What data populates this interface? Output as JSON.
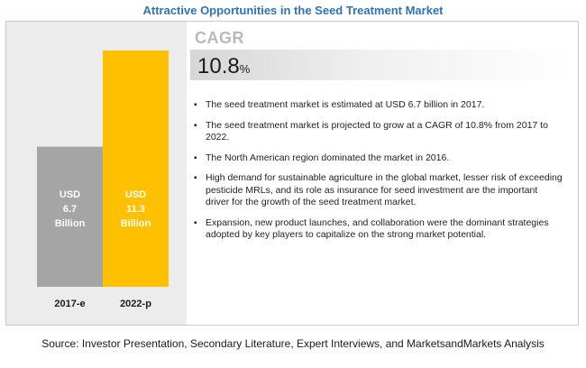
{
  "title": "Attractive Opportunities in the Seed Treatment Market",
  "cagr": {
    "label": "CAGR",
    "value": "10.8",
    "unit": "%"
  },
  "bullets": [
    "The seed treatment market is estimated at USD 6.7 billion in 2017.",
    "The seed treatment market is projected to grow at a CAGR of 10.8% from 2017 to 2022.",
    "The North American region dominated the market in 2016.",
    "High demand for sustainable agriculture in the global market, lesser risk of exceeding pesticide MRLs, and its role as insurance for seed investment are the important driver for the growth of the seed treatment market.",
    "Expansion, new product launches, and collaboration were the dominant strategies adopted by key players to capitalize on the strong market potential."
  ],
  "source": "Source: Investor Presentation, Secondary Literature, Expert Interviews, and MarketsandMarkets Analysis",
  "chart_data": {
    "type": "bar",
    "categories": [
      "2017-e",
      "2022-p"
    ],
    "values": [
      6.7,
      11.3
    ],
    "unit": "USD Billion",
    "data_labels": [
      [
        "USD",
        "6.7",
        "Billion"
      ],
      [
        "USD",
        "11.3",
        "Billion"
      ]
    ],
    "colors": [
      "#a5a5a5",
      "#ffc000"
    ],
    "ylim": [
      0,
      11.3
    ],
    "grid": false,
    "legend": "none"
  }
}
